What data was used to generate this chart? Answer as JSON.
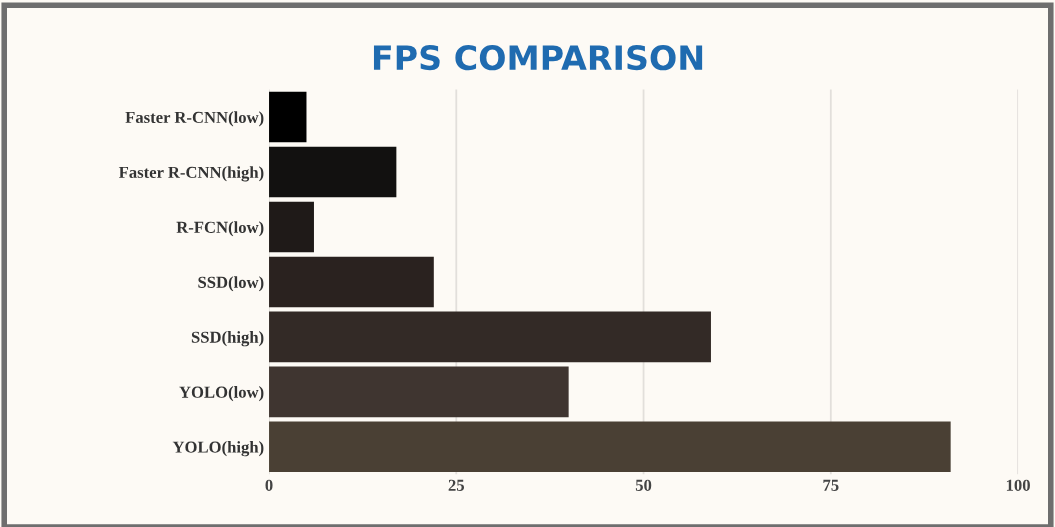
{
  "chart_data": {
    "type": "bar",
    "orientation": "horizontal",
    "title": "FPS COMPARISON",
    "categories": [
      "Faster R-CNN(low)",
      "Faster R-CNN(high)",
      "R-FCN(low)",
      "SSD(low)",
      "SSD(high)",
      "YOLO(low)",
      "YOLO(high)"
    ],
    "values": [
      5,
      17,
      6,
      22,
      59,
      40,
      91
    ],
    "colors": [
      "#000000",
      "#121110",
      "#1f1a18",
      "#2a221f",
      "#332a26",
      "#3f3530",
      "#4a4034"
    ],
    "xlim": [
      0,
      100
    ],
    "xticks": [
      0,
      25,
      50,
      75,
      100
    ],
    "grid": "x"
  }
}
